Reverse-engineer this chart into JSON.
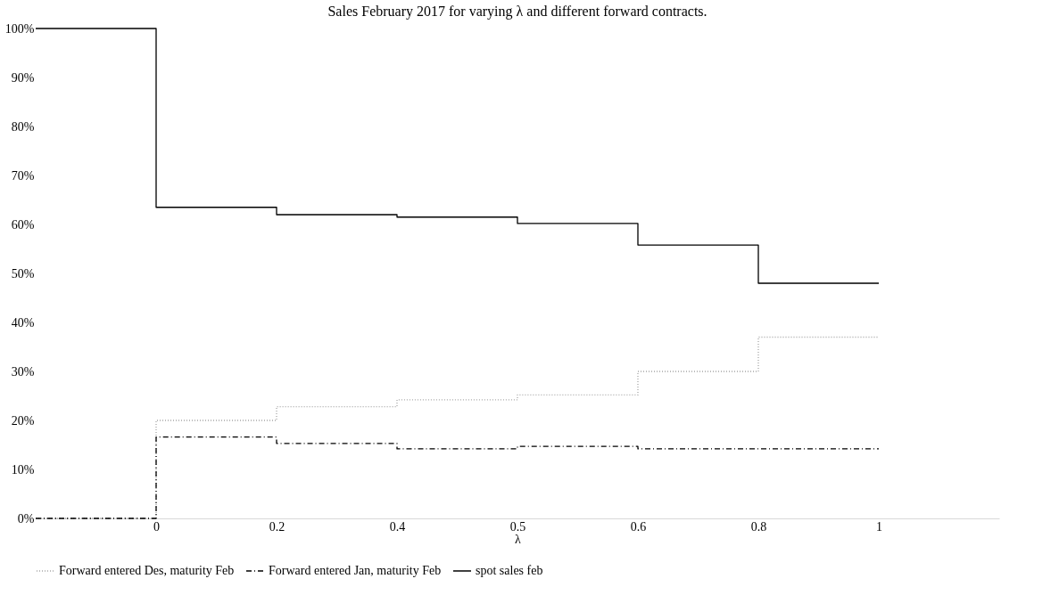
{
  "chart_data": {
    "type": "step",
    "title": "Sales February 2017 for varying λ and  different forward contracts.",
    "xlabel": "λ",
    "categories": [
      null,
      "0",
      "0.2",
      "0.4",
      "0.5",
      "0.6",
      "0.8",
      "1"
    ],
    "series": [
      {
        "name": "Forward entered Des, maturity Feb",
        "color": "#a6a6a6",
        "line_style": "dotted",
        "values": [
          0,
          20,
          22.8,
          24.2,
          25.2,
          30,
          37,
          37
        ]
      },
      {
        "name": "Forward entered Jan, maturity Feb",
        "color": "#000000",
        "line_style": "dashdot",
        "values": [
          0,
          16.6,
          15.3,
          14.2,
          14.7,
          14.2,
          14.2,
          14.2
        ]
      },
      {
        "name": "spot sales feb",
        "color": "#000000",
        "line_style": "solid",
        "values": [
          100,
          63.5,
          62,
          61.5,
          60.2,
          55.8,
          48,
          48
        ]
      }
    ],
    "ylim": [
      0,
      100
    ],
    "yticks": [
      {
        "value": 0,
        "label": "0%"
      },
      {
        "value": 10,
        "label": "10%"
      },
      {
        "value": 20,
        "label": "20%"
      },
      {
        "value": 30,
        "label": "30%"
      },
      {
        "value": 40,
        "label": "40%"
      },
      {
        "value": 50,
        "label": "50%"
      },
      {
        "value": 60,
        "label": "60%"
      },
      {
        "value": 70,
        "label": "70%"
      },
      {
        "value": 80,
        "label": "80%"
      },
      {
        "value": 90,
        "label": "90%"
      },
      {
        "value": 100,
        "label": "100%"
      }
    ],
    "grid": false,
    "legend": "bottom",
    "marker": "none"
  }
}
